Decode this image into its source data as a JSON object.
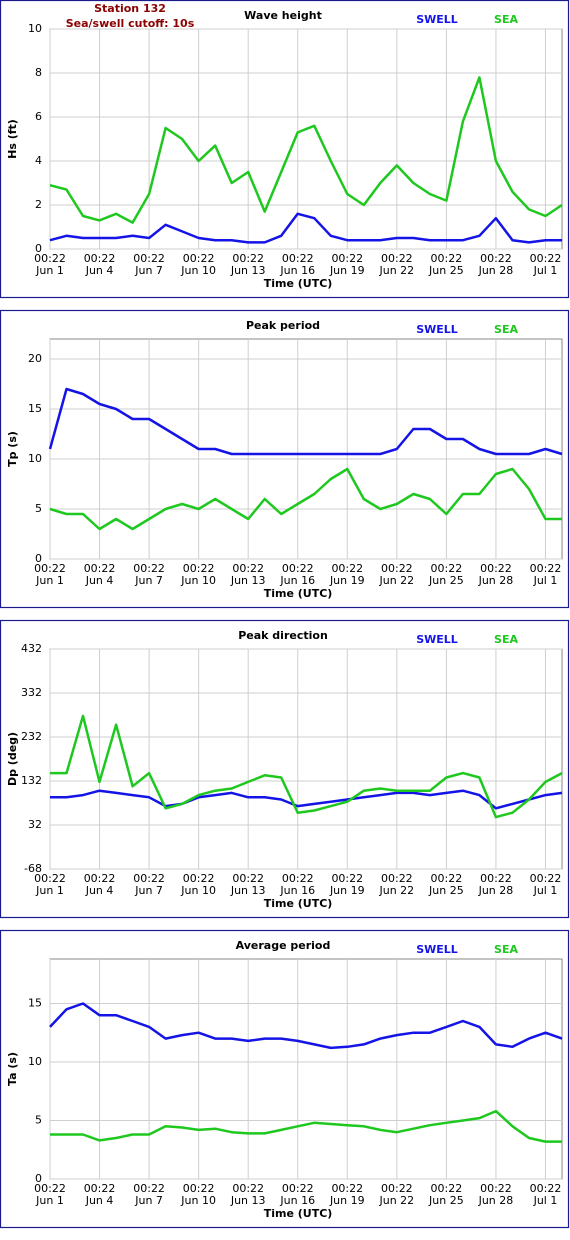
{
  "chart_data": [
    {
      "type": "line",
      "title": "Wave height",
      "annotations": [
        "Station 132",
        "Sea/swell cutoff: 10s"
      ],
      "ylabel": "Hs (ft)",
      "xlabel": "Time (UTC)",
      "x": [
        "Jun 1 00:22",
        "Jun 2 00:22",
        "Jun 3 00:22",
        "Jun 4 00:22",
        "Jun 5 00:22",
        "Jun 6 00:22",
        "Jun 7 00:22",
        "Jun 8 00:22",
        "Jun 9 00:22",
        "Jun 10 00:22",
        "Jun 11 00:22",
        "Jun 12 00:22",
        "Jun 13 00:22",
        "Jun 14 00:22",
        "Jun 15 00:22",
        "Jun 16 00:22",
        "Jun 17 00:22",
        "Jun 18 00:22",
        "Jun 19 00:22",
        "Jun 20 00:22",
        "Jun 21 00:22",
        "Jun 22 00:22",
        "Jun 23 00:22",
        "Jun 24 00:22",
        "Jun 25 00:22",
        "Jun 26 00:22",
        "Jun 27 00:22",
        "Jun 28 00:22",
        "Jun 29 00:22",
        "Jun 30 00:22",
        "Jul 1 00:22",
        "Jul 2 00:22"
      ],
      "xlim": [
        "Jun 1 00:22",
        "Jul 2 00:22"
      ],
      "xticks": [
        {
          "value": "Jun 1 00:22",
          "label": [
            "00:22",
            "Jun 1"
          ]
        },
        {
          "value": "Jun 4 00:22",
          "label": [
            "00:22",
            "Jun 4"
          ]
        },
        {
          "value": "Jun 7 00:22",
          "label": [
            "00:22",
            "Jun 7"
          ]
        },
        {
          "value": "Jun 10 00:22",
          "label": [
            "00:22",
            "Jun 10"
          ]
        },
        {
          "value": "Jun 13 00:22",
          "label": [
            "00:22",
            "Jun 13"
          ]
        },
        {
          "value": "Jun 16 00:22",
          "label": [
            "00:22",
            "Jun 16"
          ]
        },
        {
          "value": "Jun 19 00:22",
          "label": [
            "00:22",
            "Jun 19"
          ]
        },
        {
          "value": "Jun 22 00:22",
          "label": [
            "00:22",
            "Jun 22"
          ]
        },
        {
          "value": "Jun 25 00:22",
          "label": [
            "00:22",
            "Jun 25"
          ]
        },
        {
          "value": "Jun 28 00:22",
          "label": [
            "00:22",
            "Jun 28"
          ]
        },
        {
          "value": "Jul 1 00:22",
          "label": [
            "00:22",
            "Jul 1"
          ]
        }
      ],
      "ylim": [
        0,
        10
      ],
      "yticks": [
        0,
        2,
        4,
        6,
        8,
        10
      ],
      "grid": true,
      "series": [
        {
          "name": "SWELL",
          "color": "#1414e6",
          "values": [
            0.4,
            0.6,
            0.5,
            0.5,
            0.5,
            0.6,
            0.5,
            1.1,
            0.8,
            0.5,
            0.4,
            0.4,
            0.3,
            0.3,
            0.6,
            1.6,
            1.4,
            0.6,
            0.4,
            0.4,
            0.4,
            0.5,
            0.5,
            0.4,
            0.4,
            0.4,
            0.6,
            1.4,
            0.4,
            0.3,
            0.4,
            0.4
          ]
        },
        {
          "name": "SEA",
          "color": "#1ec81e",
          "values": [
            2.9,
            2.7,
            1.5,
            1.3,
            1.6,
            1.2,
            2.5,
            5.5,
            5.0,
            4.0,
            4.7,
            3.0,
            3.5,
            1.7,
            3.5,
            5.3,
            5.6,
            4.0,
            2.5,
            2.0,
            3.0,
            3.8,
            3.0,
            2.5,
            2.2,
            5.8,
            7.8,
            4.0,
            2.6,
            1.8,
            1.5,
            2.0
          ]
        }
      ]
    },
    {
      "type": "line",
      "title": "Peak period",
      "ylabel": "Tp (s)",
      "xlabel": "Time (UTC)",
      "x": [
        "Jun 1 00:22",
        "Jun 2 00:22",
        "Jun 3 00:22",
        "Jun 4 00:22",
        "Jun 5 00:22",
        "Jun 6 00:22",
        "Jun 7 00:22",
        "Jun 8 00:22",
        "Jun 9 00:22",
        "Jun 10 00:22",
        "Jun 11 00:22",
        "Jun 12 00:22",
        "Jun 13 00:22",
        "Jun 14 00:22",
        "Jun 15 00:22",
        "Jun 16 00:22",
        "Jun 17 00:22",
        "Jun 18 00:22",
        "Jun 19 00:22",
        "Jun 20 00:22",
        "Jun 21 00:22",
        "Jun 22 00:22",
        "Jun 23 00:22",
        "Jun 24 00:22",
        "Jun 25 00:22",
        "Jun 26 00:22",
        "Jun 27 00:22",
        "Jun 28 00:22",
        "Jun 29 00:22",
        "Jun 30 00:22",
        "Jul 1 00:22",
        "Jul 2 00:22"
      ],
      "xlim": [
        "Jun 1 00:22",
        "Jul 2 00:22"
      ],
      "xticks": [
        {
          "value": "Jun 1 00:22",
          "label": [
            "00:22",
            "Jun 1"
          ]
        },
        {
          "value": "Jun 4 00:22",
          "label": [
            "00:22",
            "Jun 4"
          ]
        },
        {
          "value": "Jun 7 00:22",
          "label": [
            "00:22",
            "Jun 7"
          ]
        },
        {
          "value": "Jun 10 00:22",
          "label": [
            "00:22",
            "Jun 10"
          ]
        },
        {
          "value": "Jun 13 00:22",
          "label": [
            "00:22",
            "Jun 13"
          ]
        },
        {
          "value": "Jun 16 00:22",
          "label": [
            "00:22",
            "Jun 16"
          ]
        },
        {
          "value": "Jun 19 00:22",
          "label": [
            "00:22",
            "Jun 19"
          ]
        },
        {
          "value": "Jun 22 00:22",
          "label": [
            "00:22",
            "Jun 22"
          ]
        },
        {
          "value": "Jun 25 00:22",
          "label": [
            "00:22",
            "Jun 25"
          ]
        },
        {
          "value": "Jun 28 00:22",
          "label": [
            "00:22",
            "Jun 28"
          ]
        },
        {
          "value": "Jul 1 00:22",
          "label": [
            "00:22",
            "Jul 1"
          ]
        }
      ],
      "ylim": [
        0,
        22
      ],
      "yticks": [
        0,
        5,
        10,
        15,
        20
      ],
      "grid": true,
      "series": [
        {
          "name": "SWELL",
          "color": "#1414e6",
          "values": [
            11,
            17,
            16.5,
            15.5,
            15,
            14,
            14,
            13,
            12,
            11,
            11,
            10.5,
            10.5,
            10.5,
            10.5,
            10.5,
            10.5,
            10.5,
            10.5,
            10.5,
            10.5,
            11,
            13,
            13,
            12,
            12,
            11,
            10.5,
            10.5,
            10.5,
            11,
            10.5
          ]
        },
        {
          "name": "SEA",
          "color": "#1ec81e",
          "values": [
            5,
            4.5,
            4.5,
            3,
            4,
            3,
            4,
            5,
            5.5,
            5,
            6,
            5,
            4,
            6,
            4.5,
            5.5,
            6.5,
            8,
            9,
            6,
            5,
            5.5,
            6.5,
            6,
            4.5,
            6.5,
            6.5,
            8.5,
            9,
            7,
            4,
            4
          ]
        }
      ]
    },
    {
      "type": "line",
      "title": "Peak direction",
      "ylabel": "Dp (deg)",
      "xlabel": "Time (UTC)",
      "x": [
        "Jun 1 00:22",
        "Jun 2 00:22",
        "Jun 3 00:22",
        "Jun 4 00:22",
        "Jun 5 00:22",
        "Jun 6 00:22",
        "Jun 7 00:22",
        "Jun 8 00:22",
        "Jun 9 00:22",
        "Jun 10 00:22",
        "Jun 11 00:22",
        "Jun 12 00:22",
        "Jun 13 00:22",
        "Jun 14 00:22",
        "Jun 15 00:22",
        "Jun 16 00:22",
        "Jun 17 00:22",
        "Jun 18 00:22",
        "Jun 19 00:22",
        "Jun 20 00:22",
        "Jun 21 00:22",
        "Jun 22 00:22",
        "Jun 23 00:22",
        "Jun 24 00:22",
        "Jun 25 00:22",
        "Jun 26 00:22",
        "Jun 27 00:22",
        "Jun 28 00:22",
        "Jun 29 00:22",
        "Jun 30 00:22",
        "Jul 1 00:22",
        "Jul 2 00:22"
      ],
      "xlim": [
        "Jun 1 00:22",
        "Jul 2 00:22"
      ],
      "xticks": [
        {
          "value": "Jun 1 00:22",
          "label": [
            "00:22",
            "Jun 1"
          ]
        },
        {
          "value": "Jun 4 00:22",
          "label": [
            "00:22",
            "Jun 4"
          ]
        },
        {
          "value": "Jun 7 00:22",
          "label": [
            "00:22",
            "Jun 7"
          ]
        },
        {
          "value": "Jun 10 00:22",
          "label": [
            "00:22",
            "Jun 10"
          ]
        },
        {
          "value": "Jun 13 00:22",
          "label": [
            "00:22",
            "Jun 13"
          ]
        },
        {
          "value": "Jun 16 00:22",
          "label": [
            "00:22",
            "Jun 16"
          ]
        },
        {
          "value": "Jun 19 00:22",
          "label": [
            "00:22",
            "Jun 19"
          ]
        },
        {
          "value": "Jun 22 00:22",
          "label": [
            "00:22",
            "Jun 22"
          ]
        },
        {
          "value": "Jun 25 00:22",
          "label": [
            "00:22",
            "Jun 25"
          ]
        },
        {
          "value": "Jun 28 00:22",
          "label": [
            "00:22",
            "Jun 28"
          ]
        },
        {
          "value": "Jul 1 00:22",
          "label": [
            "00:22",
            "Jul 1"
          ]
        }
      ],
      "ylim": [
        -68,
        432
      ],
      "yticks": [
        -68,
        32,
        132,
        232,
        332,
        432
      ],
      "grid": true,
      "series": [
        {
          "name": "SWELL",
          "color": "#1414e6",
          "values": [
            95,
            95,
            100,
            110,
            105,
            100,
            95,
            75,
            80,
            95,
            100,
            105,
            95,
            95,
            90,
            75,
            80,
            85,
            90,
            95,
            100,
            105,
            105,
            100,
            105,
            110,
            100,
            70,
            80,
            90,
            100,
            105
          ]
        },
        {
          "name": "SEA",
          "color": "#1ec81e",
          "values": [
            150,
            150,
            280,
            130,
            260,
            120,
            150,
            70,
            80,
            100,
            110,
            115,
            130,
            145,
            140,
            60,
            65,
            75,
            85,
            110,
            115,
            110,
            110,
            110,
            140,
            150,
            140,
            50,
            60,
            90,
            130,
            150
          ]
        }
      ]
    },
    {
      "type": "line",
      "title": "Average period",
      "ylabel": "Ta (s)",
      "xlabel": "Time (UTC)",
      "x": [
        "Jun 1 00:22",
        "Jun 2 00:22",
        "Jun 3 00:22",
        "Jun 4 00:22",
        "Jun 5 00:22",
        "Jun 6 00:22",
        "Jun 7 00:22",
        "Jun 8 00:22",
        "Jun 9 00:22",
        "Jun 10 00:22",
        "Jun 11 00:22",
        "Jun 12 00:22",
        "Jun 13 00:22",
        "Jun 14 00:22",
        "Jun 15 00:22",
        "Jun 16 00:22",
        "Jun 17 00:22",
        "Jun 18 00:22",
        "Jun 19 00:22",
        "Jun 20 00:22",
        "Jun 21 00:22",
        "Jun 22 00:22",
        "Jun 23 00:22",
        "Jun 24 00:22",
        "Jun 25 00:22",
        "Jun 26 00:22",
        "Jun 27 00:22",
        "Jun 28 00:22",
        "Jun 29 00:22",
        "Jun 30 00:22",
        "Jul 1 00:22",
        "Jul 2 00:22"
      ],
      "xlim": [
        "Jun 1 00:22",
        "Jul 2 00:22"
      ],
      "xticks": [
        {
          "value": "Jun 1 00:22",
          "label": [
            "00:22",
            "Jun 1"
          ]
        },
        {
          "value": "Jun 4 00:22",
          "label": [
            "00:22",
            "Jun 4"
          ]
        },
        {
          "value": "Jun 7 00:22",
          "label": [
            "00:22",
            "Jun 7"
          ]
        },
        {
          "value": "Jun 10 00:22",
          "label": [
            "00:22",
            "Jun 10"
          ]
        },
        {
          "value": "Jun 13 00:22",
          "label": [
            "00:22",
            "Jun 13"
          ]
        },
        {
          "value": "Jun 16 00:22",
          "label": [
            "00:22",
            "Jun 16"
          ]
        },
        {
          "value": "Jun 19 00:22",
          "label": [
            "00:22",
            "Jun 19"
          ]
        },
        {
          "value": "Jun 22 00:22",
          "label": [
            "00:22",
            "Jun 22"
          ]
        },
        {
          "value": "Jun 25 00:22",
          "label": [
            "00:22",
            "Jun 25"
          ]
        },
        {
          "value": "Jun 28 00:22",
          "label": [
            "00:22",
            "Jun 28"
          ]
        },
        {
          "value": "Jul 1 00:22",
          "label": [
            "00:22",
            "Jul 1"
          ]
        }
      ],
      "ylim": [
        0,
        18.8
      ],
      "yticks": [
        0,
        5,
        10,
        15
      ],
      "grid": true,
      "series": [
        {
          "name": "SWELL",
          "color": "#1414e6",
          "values": [
            13,
            14.5,
            15,
            14,
            14,
            13.5,
            13,
            12,
            12.3,
            12.5,
            12,
            12,
            11.8,
            12,
            12,
            11.8,
            11.5,
            11.2,
            11.3,
            11.5,
            12,
            12.3,
            12.5,
            12.5,
            13,
            13.5,
            13,
            11.5,
            11.3,
            12,
            12.5,
            12
          ]
        },
        {
          "name": "SEA",
          "color": "#1ec81e",
          "values": [
            3.8,
            3.8,
            3.8,
            3.3,
            3.5,
            3.8,
            3.8,
            4.5,
            4.4,
            4.2,
            4.3,
            4.0,
            3.9,
            3.9,
            4.2,
            4.5,
            4.8,
            4.7,
            4.6,
            4.5,
            4.2,
            4.0,
            4.3,
            4.6,
            4.8,
            5.0,
            5.2,
            5.8,
            4.5,
            3.5,
            3.2,
            3.2
          ]
        }
      ]
    }
  ]
}
